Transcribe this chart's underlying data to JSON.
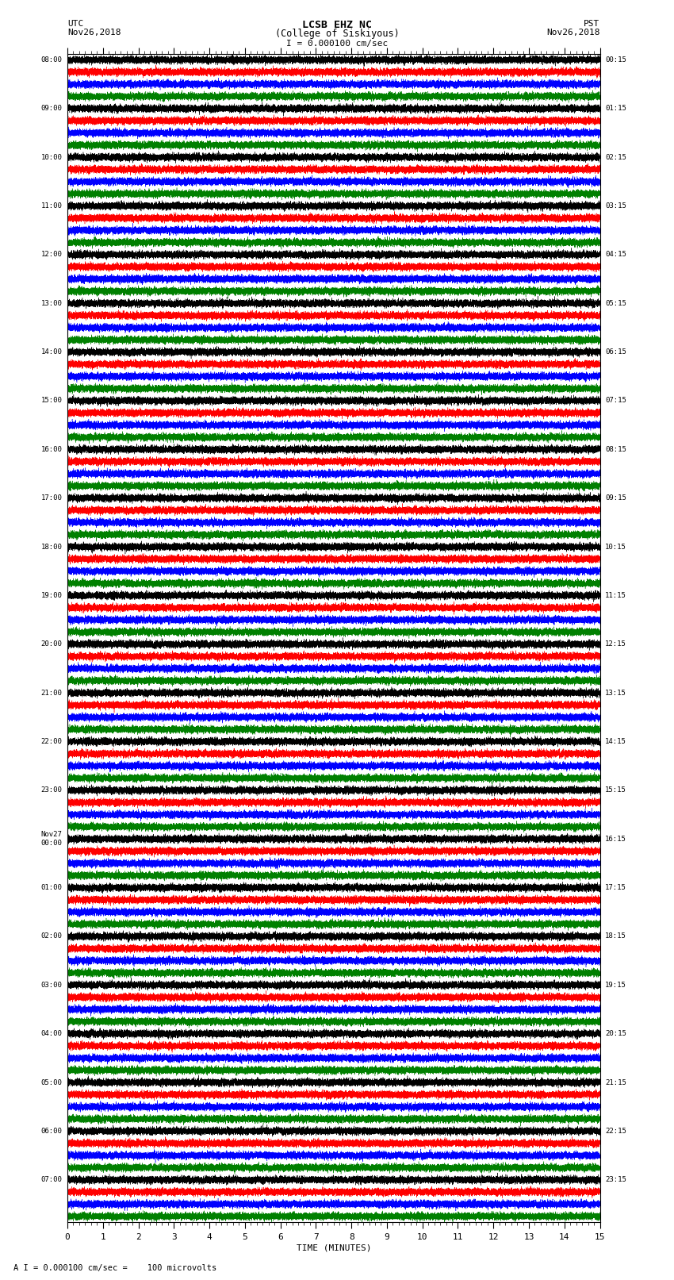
{
  "title_line1": "LCSB EHZ NC",
  "title_line2": "(College of Siskiyous)",
  "title_line3": "I = 0.000100 cm/sec",
  "left_header_line1": "UTC",
  "left_header_line2": "Nov26,2018",
  "right_header_line1": "PST",
  "right_header_line2": "Nov26,2018",
  "xlabel": "TIME (MINUTES)",
  "footer": "A I = 0.000100 cm/sec =    100 microvolts",
  "colors": [
    "black",
    "red",
    "blue",
    "green"
  ],
  "num_traces": 96,
  "n_groups": 24,
  "traces_per_group": 4,
  "minutes": 15,
  "sample_rate": 100,
  "noise_amplitude": 0.12,
  "left_times_utc": [
    "08:00",
    "09:00",
    "10:00",
    "11:00",
    "12:00",
    "13:00",
    "14:00",
    "15:00",
    "16:00",
    "17:00",
    "18:00",
    "19:00",
    "20:00",
    "21:00",
    "22:00",
    "23:00",
    "Nov27\n00:00",
    "01:00",
    "02:00",
    "03:00",
    "04:00",
    "05:00",
    "06:00",
    "07:00"
  ],
  "right_times_pst": [
    "00:15",
    "01:15",
    "02:15",
    "03:15",
    "04:15",
    "05:15",
    "06:15",
    "07:15",
    "08:15",
    "09:15",
    "10:15",
    "11:15",
    "12:15",
    "13:15",
    "14:15",
    "15:15",
    "16:15",
    "17:15",
    "18:15",
    "19:15",
    "20:15",
    "21:15",
    "22:15",
    "23:15"
  ],
  "background_color": "white",
  "fig_width": 8.5,
  "fig_height": 16.13
}
